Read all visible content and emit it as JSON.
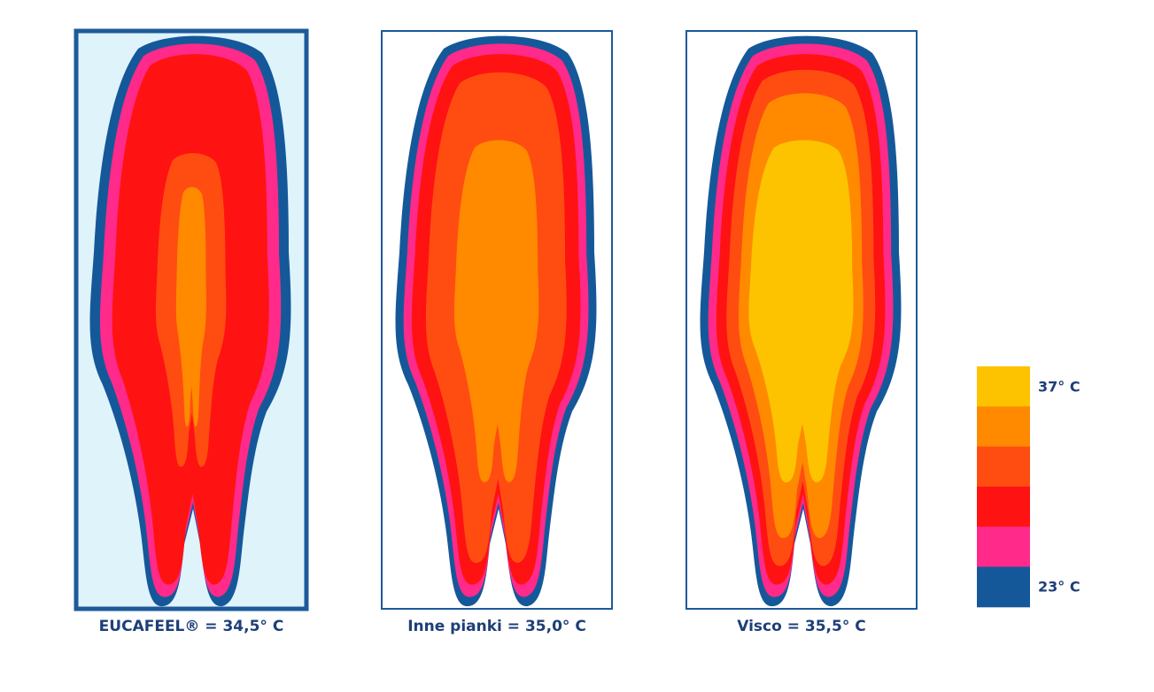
{
  "panels": [
    {
      "caption": "EUCAFEEL® = 34,5° C"
    },
    {
      "caption": "Inne pianki = 35,0° C"
    },
    {
      "caption": "Visco = 35,5° C"
    }
  ],
  "legend": {
    "top_label": "37° C",
    "bottom_label": "23° C",
    "colors": [
      "#fdc300",
      "#ff8a00",
      "#ff4d12",
      "#ff1212",
      "#ff2a8a",
      "#15589a"
    ]
  }
}
